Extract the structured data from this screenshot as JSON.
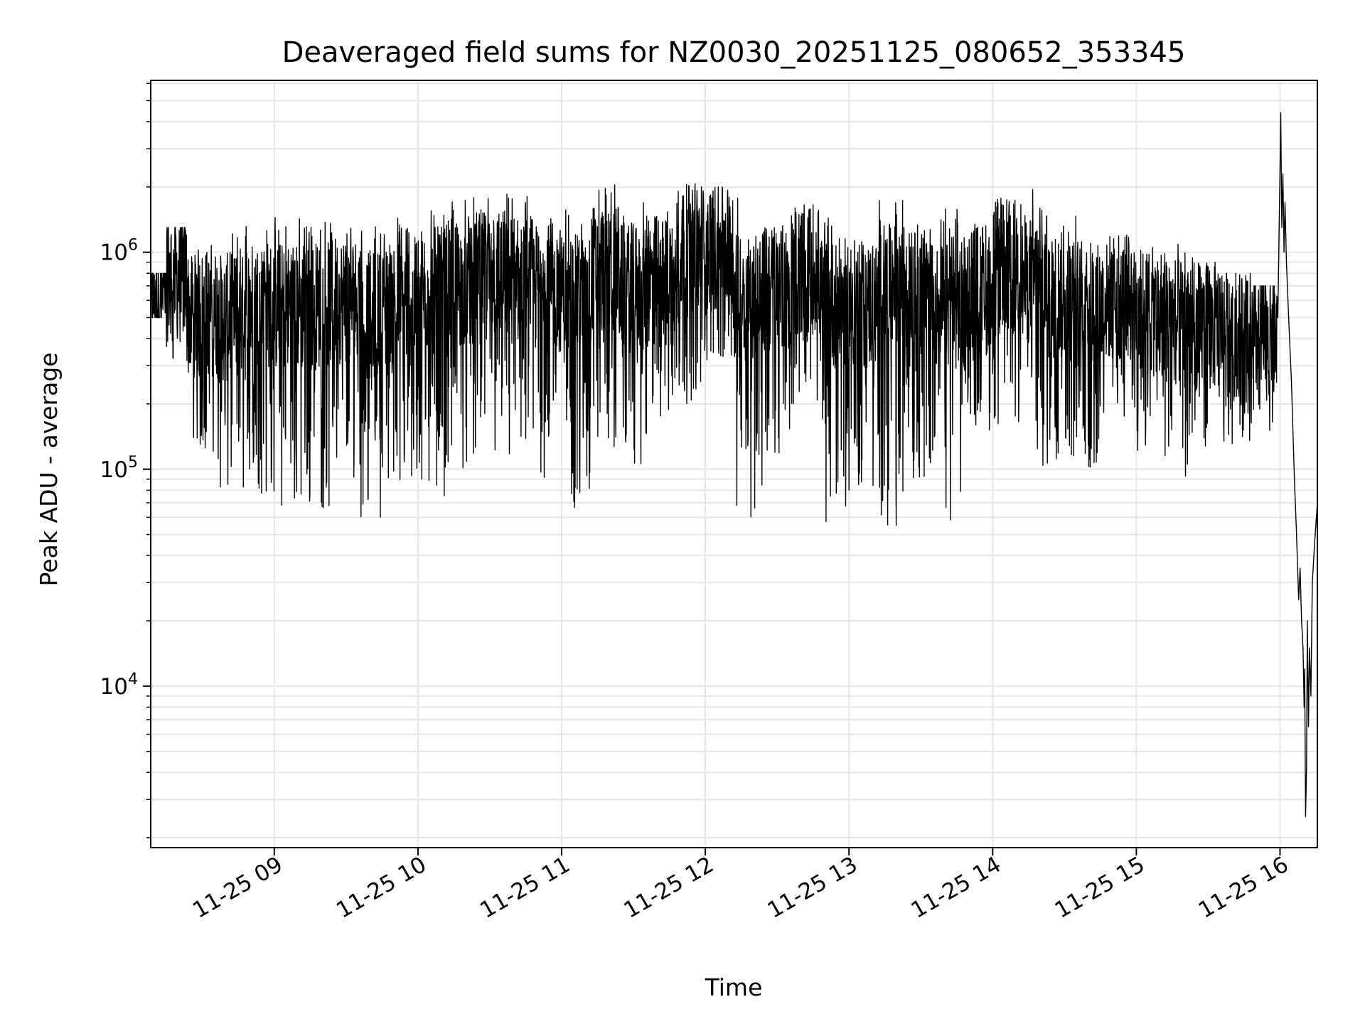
{
  "chart_data": {
    "type": "line",
    "title": "Deaveraged field sums for NZ0030_20251125_080652_353345",
    "xlabel": "Time",
    "ylabel": "Peak ADU - average",
    "yscale": "log",
    "ylim": [
      1800,
      6200000
    ],
    "xlim": [
      8.14,
      16.26
    ],
    "grid": true,
    "line_color": "#000000",
    "grid_color": "#e6e6e6",
    "x_ticks": [
      {
        "value": 9,
        "label": "11-25 09"
      },
      {
        "value": 10,
        "label": "11-25 10"
      },
      {
        "value": 11,
        "label": "11-25 11"
      },
      {
        "value": 12,
        "label": "11-25 12"
      },
      {
        "value": 13,
        "label": "11-25 13"
      },
      {
        "value": 14,
        "label": "11-25 14"
      },
      {
        "value": 15,
        "label": "11-25 15"
      },
      {
        "value": 16,
        "label": "11-25 16"
      }
    ],
    "y_ticks": [
      {
        "value": 10000,
        "base": "10",
        "exp": "4"
      },
      {
        "value": 100000,
        "base": "10",
        "exp": "5"
      },
      {
        "value": 1000000,
        "base": "10",
        "exp": "6"
      }
    ],
    "series": [
      {
        "name": "Peak ADU - average",
        "segments": [
          {
            "t0": 8.14,
            "t1": 8.25,
            "lo": 500000,
            "hi": 800000
          },
          {
            "t0": 8.25,
            "t1": 8.4,
            "lo": 300000,
            "hi": 1300000
          },
          {
            "t0": 8.4,
            "t1": 8.6,
            "lo": 120000,
            "hi": 1100000
          },
          {
            "t0": 8.6,
            "t1": 8.8,
            "lo": 70000,
            "hi": 1250000
          },
          {
            "t0": 8.8,
            "t1": 9.0,
            "lo": 75000,
            "hi": 1500000
          },
          {
            "t0": 9.0,
            "t1": 9.2,
            "lo": 65000,
            "hi": 1500000
          },
          {
            "t0": 9.2,
            "t1": 9.4,
            "lo": 65000,
            "hi": 1550000
          },
          {
            "t0": 9.4,
            "t1": 9.6,
            "lo": 90000,
            "hi": 1500000
          },
          {
            "t0": 9.6,
            "t1": 9.8,
            "lo": 60000,
            "hi": 1400000
          },
          {
            "t0": 9.8,
            "t1": 10.0,
            "lo": 80000,
            "hi": 1500000
          },
          {
            "t0": 10.0,
            "t1": 10.2,
            "lo": 75000,
            "hi": 1800000
          },
          {
            "t0": 10.2,
            "t1": 10.4,
            "lo": 100000,
            "hi": 1800000
          },
          {
            "t0": 10.4,
            "t1": 10.6,
            "lo": 110000,
            "hi": 2000000
          },
          {
            "t0": 10.6,
            "t1": 10.8,
            "lo": 100000,
            "hi": 1900000
          },
          {
            "t0": 10.8,
            "t1": 11.0,
            "lo": 85000,
            "hi": 1800000
          },
          {
            "t0": 11.0,
            "t1": 11.2,
            "lo": 65000,
            "hi": 1700000
          },
          {
            "t0": 11.2,
            "t1": 11.4,
            "lo": 120000,
            "hi": 2100000
          },
          {
            "t0": 11.4,
            "t1": 11.6,
            "lo": 100000,
            "hi": 1700000
          },
          {
            "t0": 11.6,
            "t1": 11.8,
            "lo": 160000,
            "hi": 1600000
          },
          {
            "t0": 11.8,
            "t1": 12.0,
            "lo": 200000,
            "hi": 2300000
          },
          {
            "t0": 12.0,
            "t1": 12.2,
            "lo": 300000,
            "hi": 2000000
          },
          {
            "t0": 12.2,
            "t1": 12.4,
            "lo": 60000,
            "hi": 1800000
          },
          {
            "t0": 12.4,
            "t1": 12.6,
            "lo": 110000,
            "hi": 1600000
          },
          {
            "t0": 12.6,
            "t1": 12.8,
            "lo": 200000,
            "hi": 1700000
          },
          {
            "t0": 12.8,
            "t1": 13.0,
            "lo": 55000,
            "hi": 1700000
          },
          {
            "t0": 13.0,
            "t1": 13.2,
            "lo": 70000,
            "hi": 1500000
          },
          {
            "t0": 13.2,
            "t1": 13.4,
            "lo": 55000,
            "hi": 2100000
          },
          {
            "t0": 13.4,
            "t1": 13.6,
            "lo": 80000,
            "hi": 1700000
          },
          {
            "t0": 13.6,
            "t1": 13.8,
            "lo": 58000,
            "hi": 1600000
          },
          {
            "t0": 13.8,
            "t1": 14.0,
            "lo": 150000,
            "hi": 1500000
          },
          {
            "t0": 14.0,
            "t1": 14.2,
            "lo": 150000,
            "hi": 2100000
          },
          {
            "t0": 14.2,
            "t1": 14.4,
            "lo": 90000,
            "hi": 2000000
          },
          {
            "t0": 14.4,
            "t1": 14.6,
            "lo": 100000,
            "hi": 1500000
          },
          {
            "t0": 14.6,
            "t1": 14.8,
            "lo": 85000,
            "hi": 1400000
          },
          {
            "t0": 14.8,
            "t1": 15.0,
            "lo": 170000,
            "hi": 1200000
          },
          {
            "t0": 15.0,
            "t1": 15.2,
            "lo": 120000,
            "hi": 1100000
          },
          {
            "t0": 15.2,
            "t1": 15.4,
            "lo": 90000,
            "hi": 1100000
          },
          {
            "t0": 15.4,
            "t1": 15.6,
            "lo": 120000,
            "hi": 900000
          },
          {
            "t0": 15.6,
            "t1": 15.8,
            "lo": 130000,
            "hi": 800000
          },
          {
            "t0": 15.8,
            "t1": 15.98,
            "lo": 150000,
            "hi": 700000
          }
        ],
        "tail": [
          {
            "x": 15.985,
            "y": 500000
          },
          {
            "x": 16.0,
            "y": 2500000
          },
          {
            "x": 16.005,
            "y": 4400000
          },
          {
            "x": 16.012,
            "y": 1300000
          },
          {
            "x": 16.02,
            "y": 2300000
          },
          {
            "x": 16.028,
            "y": 1000000
          },
          {
            "x": 16.035,
            "y": 1700000
          },
          {
            "x": 16.045,
            "y": 900000
          },
          {
            "x": 16.06,
            "y": 500000
          },
          {
            "x": 16.08,
            "y": 250000
          },
          {
            "x": 16.1,
            "y": 90000
          },
          {
            "x": 16.115,
            "y": 50000
          },
          {
            "x": 16.13,
            "y": 25000
          },
          {
            "x": 16.14,
            "y": 35000
          },
          {
            "x": 16.15,
            "y": 20000
          },
          {
            "x": 16.16,
            "y": 15000
          },
          {
            "x": 16.168,
            "y": 8000
          },
          {
            "x": 16.172,
            "y": 12000
          },
          {
            "x": 16.178,
            "y": 2500
          },
          {
            "x": 16.185,
            "y": 4200
          },
          {
            "x": 16.19,
            "y": 20000
          },
          {
            "x": 16.198,
            "y": 6500
          },
          {
            "x": 16.205,
            "y": 15000
          },
          {
            "x": 16.215,
            "y": 9000
          },
          {
            "x": 16.225,
            "y": 30000
          },
          {
            "x": 16.24,
            "y": 45000
          },
          {
            "x": 16.26,
            "y": 70000
          }
        ]
      }
    ]
  }
}
